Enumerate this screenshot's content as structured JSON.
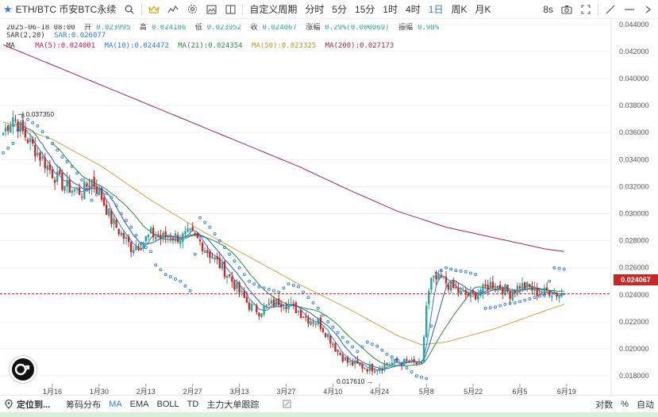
{
  "toolbar": {
    "symbol": "ETH/BTC 币安BTC永续",
    "custom_period": "自定义周期",
    "intervals": [
      "分时",
      "5分",
      "15分",
      "1时",
      "4时",
      "1日",
      "周K",
      "月K"
    ],
    "active_interval": "1日",
    "refresh": "8s"
  },
  "info": {
    "date_time": "2025-06-18 08:00",
    "open_label": "开",
    "open": "0.023995",
    "high_label": "高",
    "high": "0.024186",
    "low_label": "低",
    "low": "0.023952",
    "close_label": "收",
    "close": "0.024067",
    "change_label": "涨幅",
    "change": "0.29%(0.000069)",
    "amplitude_label": "振幅",
    "amplitude": "0.98%",
    "sar_label": "SAR(2,20)",
    "sar_value": "SAR:0.026077",
    "ma_label": "MA",
    "ma5": "MA(5):0.024001",
    "ma10": "MA(10):0.024472",
    "ma21": "MA(21):0.024354",
    "ma50": "MA(50):0.023325",
    "ma200": "MA(200):0.027173"
  },
  "colors": {
    "up": "#26a69a",
    "down": "#c62828",
    "ma5": "#2f7ae5",
    "ma10": "#1f5fa8",
    "ma21": "#2e8b3a",
    "ma50": "#c9a84a",
    "ma200": "#9c2a43",
    "sar": "#2f7ae5"
  },
  "chart_data": {
    "type": "candlestick",
    "symbol": "ETH/BTC",
    "x_ticks": [
      "1月16",
      "1月30",
      "2月13",
      "2月27",
      "3月13",
      "3月27",
      "4月10",
      "4月24",
      "5月8",
      "5月22",
      "6月5",
      "6月19"
    ],
    "y_ticks": [
      "0.044000",
      "0.042000",
      "0.040000",
      "0.038000",
      "0.036000",
      "0.034000",
      "0.032000",
      "0.030000",
      "0.028000",
      "0.026000",
      "0.024000",
      "0.022000",
      "0.020000",
      "0.018000"
    ],
    "ylim": [
      0.0166,
      0.0444
    ],
    "last_price": "0.024067",
    "high_annotation": "0.037350",
    "low_annotation": "0.017610",
    "closes_anchor": [
      [
        0,
        0.036
      ],
      [
        4,
        0.0372
      ],
      [
        8,
        0.036
      ],
      [
        12,
        0.035
      ],
      [
        16,
        0.034
      ],
      [
        20,
        0.033
      ],
      [
        24,
        0.0322
      ],
      [
        28,
        0.0318
      ],
      [
        32,
        0.0316
      ],
      [
        36,
        0.0325
      ],
      [
        40,
        0.0312
      ],
      [
        44,
        0.0295
      ],
      [
        48,
        0.0285
      ],
      [
        52,
        0.0275
      ],
      [
        56,
        0.0278
      ],
      [
        60,
        0.0285
      ],
      [
        64,
        0.0282
      ],
      [
        68,
        0.0284
      ],
      [
        72,
        0.0282
      ],
      [
        76,
        0.0285
      ],
      [
        80,
        0.0279
      ],
      [
        84,
        0.027
      ],
      [
        88,
        0.0262
      ],
      [
        92,
        0.0253
      ],
      [
        96,
        0.0242
      ],
      [
        100,
        0.0232
      ],
      [
        104,
        0.0228
      ],
      [
        108,
        0.0232
      ],
      [
        112,
        0.0235
      ],
      [
        116,
        0.0233
      ],
      [
        120,
        0.0228
      ],
      [
        124,
        0.0222
      ],
      [
        128,
        0.022
      ],
      [
        132,
        0.021
      ],
      [
        136,
        0.0198
      ],
      [
        140,
        0.019
      ],
      [
        144,
        0.0188
      ],
      [
        148,
        0.0186
      ],
      [
        152,
        0.0186
      ],
      [
        156,
        0.0189
      ],
      [
        160,
        0.019
      ],
      [
        164,
        0.019
      ],
      [
        168,
        0.0189
      ],
      [
        170,
        0.0187
      ],
      [
        172,
        0.0232
      ],
      [
        174,
        0.025
      ],
      [
        178,
        0.0252
      ],
      [
        182,
        0.0246
      ],
      [
        186,
        0.0241
      ],
      [
        190,
        0.0239
      ],
      [
        194,
        0.0242
      ],
      [
        198,
        0.0248
      ],
      [
        202,
        0.0246
      ],
      [
        206,
        0.0241
      ],
      [
        210,
        0.0247
      ],
      [
        214,
        0.0245
      ],
      [
        218,
        0.0241
      ],
      [
        222,
        0.0243
      ],
      [
        226,
        0.024
      ],
      [
        228,
        0.0241
      ]
    ],
    "ma50_anchor": [
      [
        0,
        0.0368
      ],
      [
        20,
        0.0355
      ],
      [
        40,
        0.0335
      ],
      [
        60,
        0.031
      ],
      [
        80,
        0.0288
      ],
      [
        100,
        0.0268
      ],
      [
        120,
        0.0248
      ],
      [
        140,
        0.023
      ],
      [
        160,
        0.021
      ],
      [
        170,
        0.0203
      ],
      [
        180,
        0.0205
      ],
      [
        200,
        0.0215
      ],
      [
        220,
        0.0228
      ],
      [
        228,
        0.0233
      ]
    ],
    "ma200_anchor": [
      [
        0,
        0.0425
      ],
      [
        20,
        0.041
      ],
      [
        40,
        0.0395
      ],
      [
        60,
        0.038
      ],
      [
        80,
        0.0365
      ],
      [
        100,
        0.035
      ],
      [
        120,
        0.0335
      ],
      [
        140,
        0.0318
      ],
      [
        160,
        0.0302
      ],
      [
        180,
        0.029
      ],
      [
        200,
        0.0282
      ],
      [
        220,
        0.0274
      ],
      [
        228,
        0.0272
      ]
    ],
    "sar_anchor": [
      [
        0,
        0.0345
      ],
      [
        4,
        0.0352
      ],
      [
        8,
        0.0372
      ],
      [
        14,
        0.0365
      ],
      [
        20,
        0.0352
      ],
      [
        24,
        0.0342
      ],
      [
        28,
        0.0335
      ],
      [
        32,
        0.0325
      ],
      [
        36,
        0.031
      ],
      [
        40,
        0.0318
      ],
      [
        44,
        0.0312
      ],
      [
        48,
        0.03
      ],
      [
        52,
        0.029
      ],
      [
        56,
        0.0278
      ],
      [
        60,
        0.0272
      ],
      [
        62,
        0.0262
      ],
      [
        66,
        0.0255
      ],
      [
        72,
        0.025
      ],
      [
        76,
        0.0243
      ],
      [
        80,
        0.0297
      ],
      [
        84,
        0.029
      ],
      [
        88,
        0.028
      ],
      [
        92,
        0.027
      ],
      [
        96,
        0.026
      ],
      [
        100,
        0.025
      ],
      [
        104,
        0.0246
      ],
      [
        108,
        0.0244
      ],
      [
        112,
        0.0242
      ],
      [
        116,
        0.0248
      ],
      [
        120,
        0.0246
      ],
      [
        124,
        0.0238
      ],
      [
        128,
        0.023
      ],
      [
        132,
        0.022
      ],
      [
        136,
        0.0212
      ],
      [
        140,
        0.0205
      ],
      [
        144,
        0.0198
      ],
      [
        148,
        0.0205
      ],
      [
        152,
        0.0202
      ],
      [
        156,
        0.0196
      ],
      [
        160,
        0.0192
      ],
      [
        164,
        0.0186
      ],
      [
        168,
        0.018
      ],
      [
        172,
        0.0178
      ],
      [
        176,
        0.0256
      ],
      [
        180,
        0.026
      ],
      [
        184,
        0.0258
      ],
      [
        188,
        0.0257
      ],
      [
        192,
        0.0255
      ],
      [
        196,
        0.023
      ],
      [
        200,
        0.0231
      ],
      [
        204,
        0.0233
      ],
      [
        208,
        0.0234
      ],
      [
        212,
        0.0236
      ],
      [
        216,
        0.0238
      ],
      [
        220,
        0.024
      ],
      [
        224,
        0.026
      ],
      [
        228,
        0.0259
      ]
    ]
  },
  "bottom": {
    "locate": "定位到...",
    "items": [
      "筹码分布",
      "MA",
      "EMA",
      "BOLL",
      "TD",
      "主力大单跟踪"
    ],
    "active": "MA",
    "scale_log": "对数",
    "scale_pct": "%",
    "auto": "自动"
  }
}
